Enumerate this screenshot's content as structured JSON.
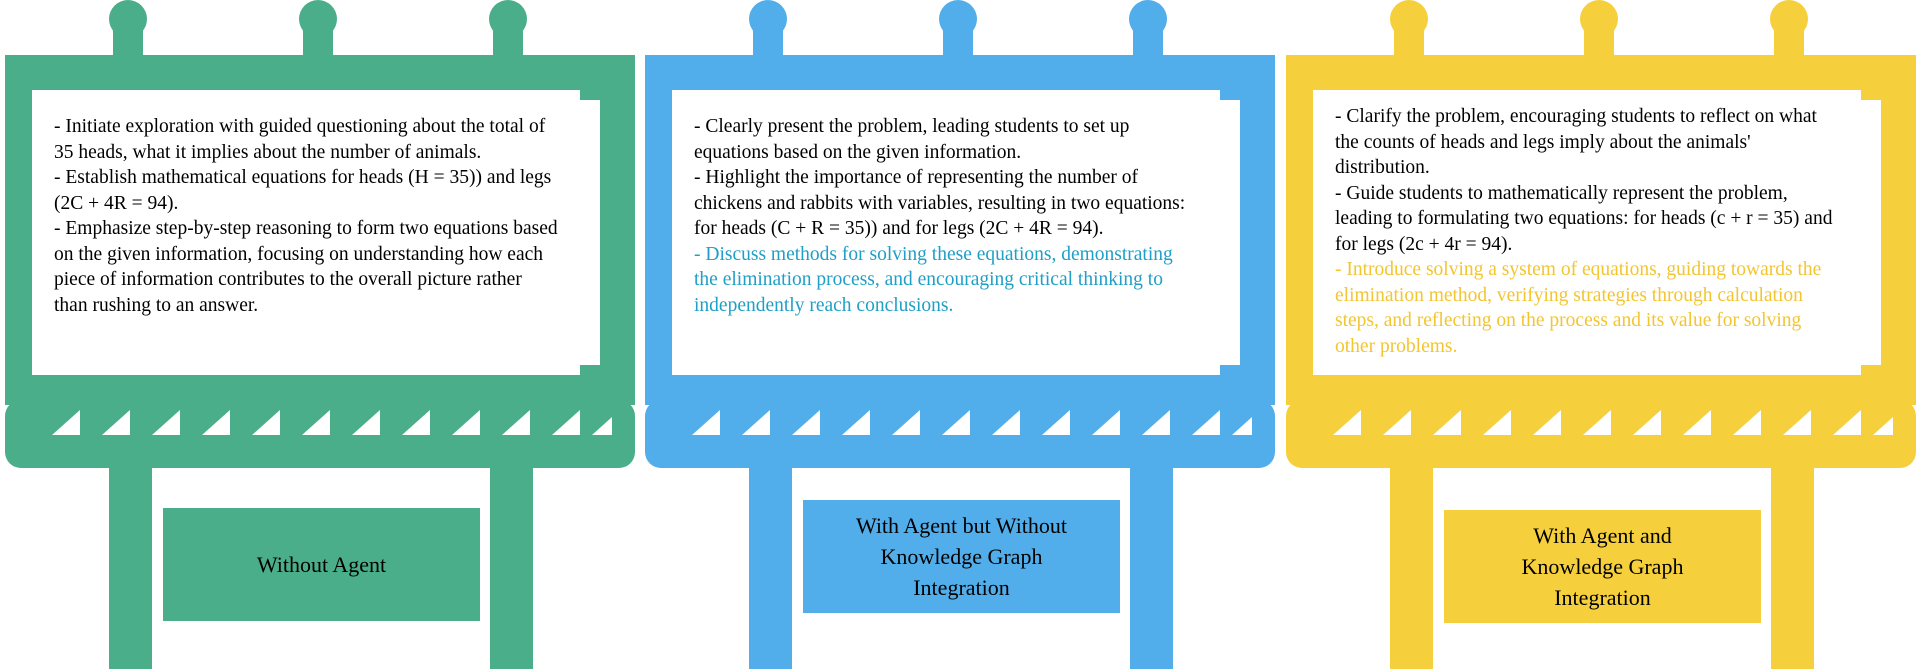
{
  "colors": {
    "green": "#4aae8a",
    "blue": "#51aeeb",
    "yellow": "#f5d03c",
    "blue_text": "#1f9fc6",
    "yellow_text": "#f3c530"
  },
  "signs": [
    {
      "id": "without-agent",
      "color": "#4aae8a",
      "label": "Without Agent",
      "lines": [
        "- Initiate exploration with guided questioning about the total of 35 heads, what it implies about the number of animals.",
        "- Establish mathematical equations for heads (H = 35)) and legs (2C + 4R = 94).",
        "- Emphasize step-by-step reasoning to form two equations based on the given information, focusing on understanding how each piece of information contributes to the overall picture rather than rushing to an answer."
      ]
    },
    {
      "id": "agent-without-kg",
      "color": "#51aeeb",
      "label": "With Agent but Without Knowledge Graph Integration",
      "lines": [
        "- Clearly present the problem, leading students to set up equations based on the given information.",
        "- Highlight the importance of representing the number of chickens and rabbits with variables, resulting in two equations: for heads (C + R = 35)) and for legs (2C + 4R = 94).",
        "- Discuss methods for solving these equations, demonstrating the elimination process, and encouraging critical thinking to independently reach conclusions."
      ]
    },
    {
      "id": "agent-with-kg",
      "color": "#f5d03c",
      "label": "With Agent and Knowledge Graph Integration",
      "lines": [
        "- Clarify the problem, encouraging students to reflect on what the counts of heads and legs imply about the animals' distribution.",
        "- Guide students to mathematically represent the problem, leading to formulating two equations: for heads (c + r = 35) and for legs (2c + 4r = 94).",
        "- Introduce solving a system of equations, guiding towards the elimination method, verifying strategies through calculation steps, and reflecting on the process and its value for solving other problems."
      ]
    }
  ]
}
